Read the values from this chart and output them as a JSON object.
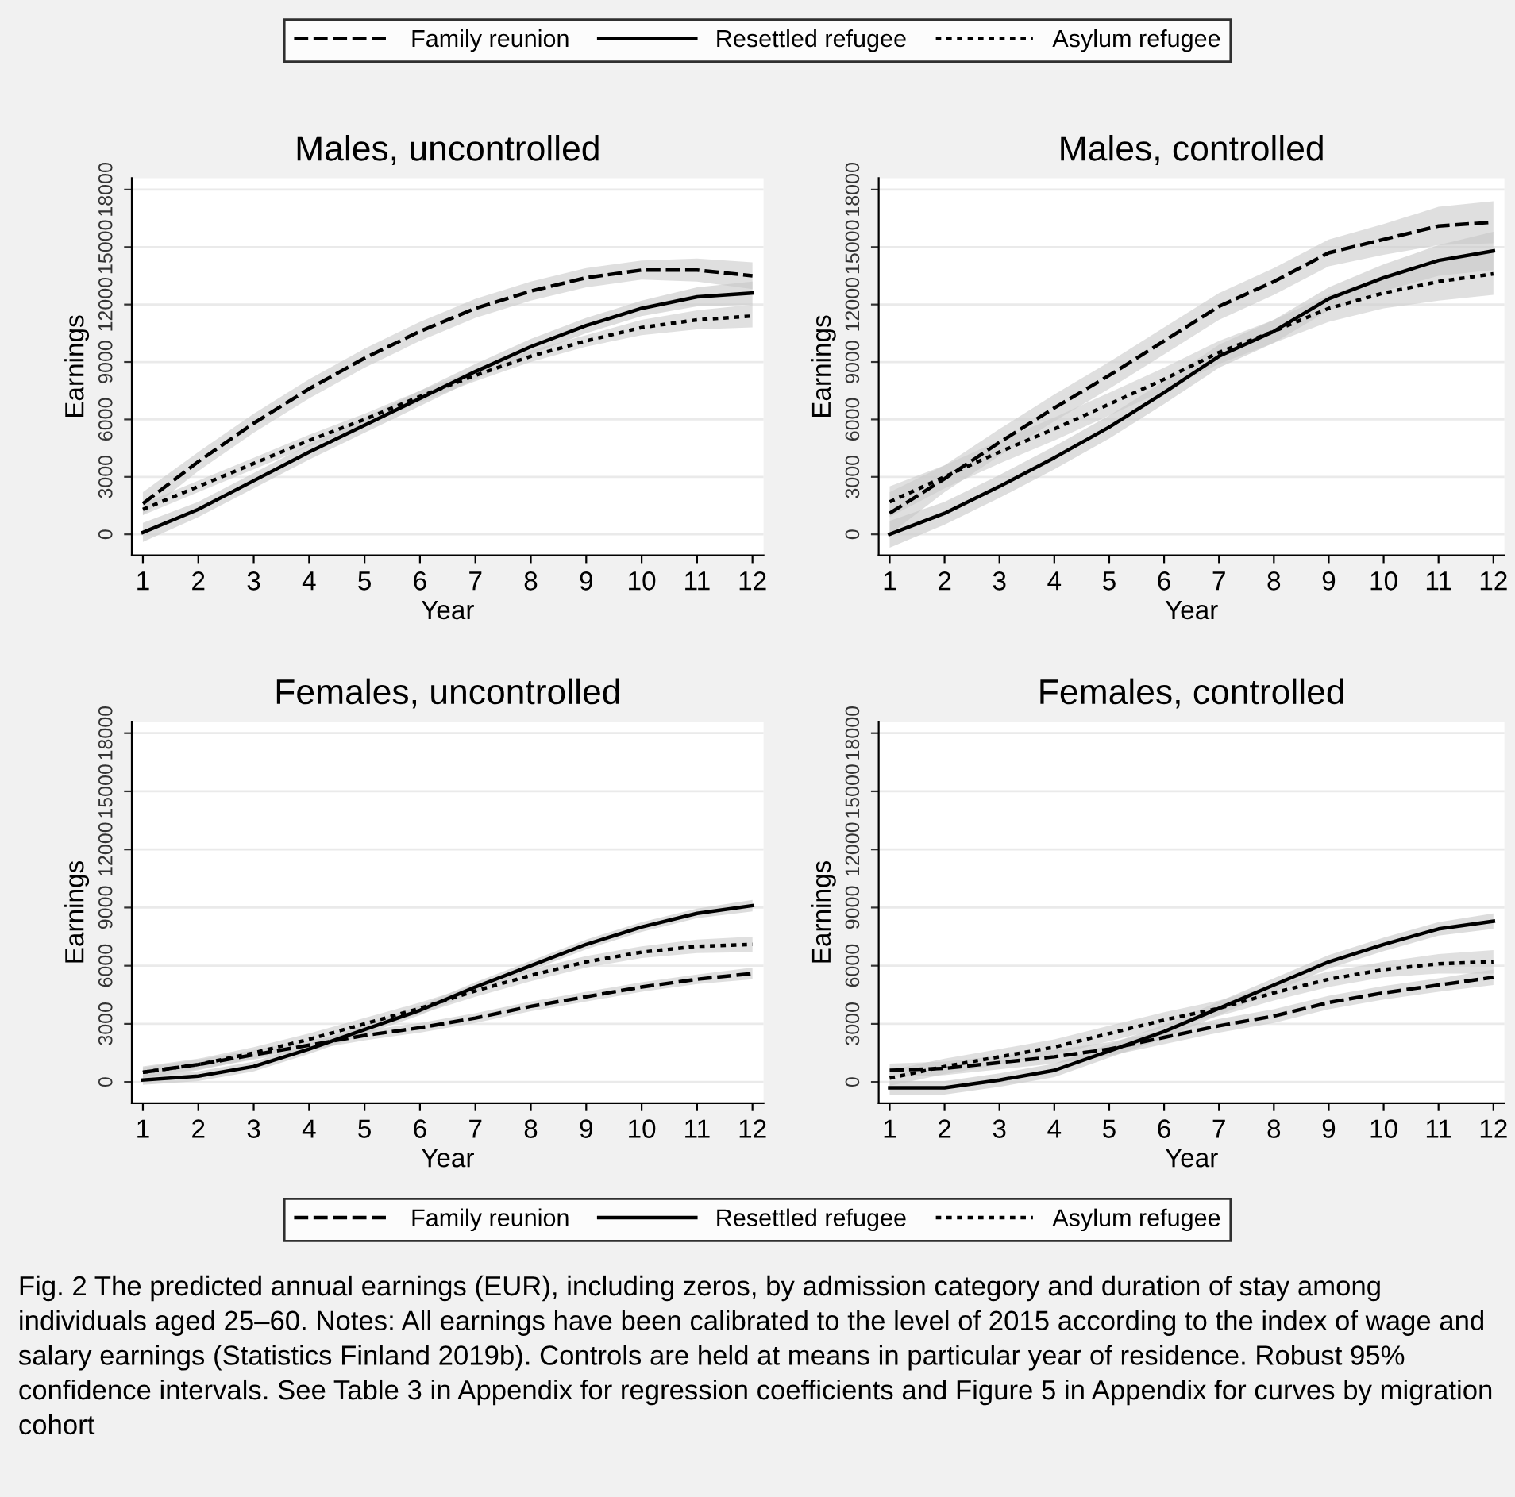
{
  "chart_data": [
    {
      "type": "line",
      "title": "Males, uncontrolled",
      "xlabel": "Year",
      "ylabel": "Earnings",
      "x": [
        1,
        2,
        3,
        4,
        5,
        6,
        7,
        8,
        9,
        10,
        11,
        12
      ],
      "xlim": [
        0.8,
        12.2
      ],
      "xticks": [
        1,
        2,
        3,
        4,
        5,
        6,
        7,
        8,
        9,
        10,
        11,
        12
      ],
      "ylim": [
        -1100,
        18600
      ],
      "yticks": [
        0,
        3000,
        6000,
        9000,
        12000,
        15000,
        18000
      ],
      "grid": "y",
      "legend": "top",
      "marker": "none",
      "series": [
        {
          "name": "Family reunion",
          "color": "#000000",
          "line_style": "dashed",
          "values": [
            1600,
            3800,
            5800,
            7600,
            9200,
            10600,
            11800,
            12700,
            13400,
            13800,
            13800,
            13500
          ],
          "lower": [
            1000,
            3300,
            5300,
            7100,
            8700,
            10100,
            11300,
            12200,
            12900,
            13300,
            13200,
            12800
          ],
          "upper": [
            2200,
            4300,
            6300,
            8100,
            9700,
            11100,
            12300,
            13200,
            13900,
            14300,
            14400,
            14200
          ]
        },
        {
          "name": "Resettled refugee",
          "color": "#000000",
          "line_style": "solid",
          "values": [
            100,
            1300,
            2800,
            4300,
            5700,
            7100,
            8500,
            9800,
            10900,
            11800,
            12400,
            12600
          ],
          "lower": [
            -400,
            900,
            2400,
            3900,
            5300,
            6700,
            8100,
            9400,
            10500,
            11400,
            11900,
            12000
          ],
          "upper": [
            600,
            1700,
            3200,
            4700,
            6100,
            7500,
            8900,
            10200,
            11300,
            12200,
            12900,
            13200
          ]
        },
        {
          "name": "Asylum refugee",
          "color": "#000000",
          "line_style": "dotted",
          "values": [
            1300,
            2500,
            3700,
            4900,
            6000,
            7200,
            8300,
            9300,
            10100,
            10800,
            11200,
            11400
          ],
          "lower": [
            1000,
            2200,
            3400,
            4600,
            5700,
            6900,
            8000,
            9000,
            9800,
            10400,
            10700,
            10800
          ],
          "upper": [
            1600,
            2800,
            4000,
            5200,
            6300,
            7500,
            8600,
            9600,
            10400,
            11200,
            11700,
            12000
          ]
        }
      ]
    },
    {
      "type": "line",
      "title": "Males, controlled",
      "xlabel": "Year",
      "ylabel": "Earnings",
      "x": [
        1,
        2,
        3,
        4,
        5,
        6,
        7,
        8,
        9,
        10,
        11,
        12
      ],
      "xlim": [
        0.8,
        12.2
      ],
      "xticks": [
        1,
        2,
        3,
        4,
        5,
        6,
        7,
        8,
        9,
        10,
        11,
        12
      ],
      "ylim": [
        -1100,
        18600
      ],
      "yticks": [
        0,
        3000,
        6000,
        9000,
        12000,
        15000,
        18000
      ],
      "grid": "y",
      "marker": "none",
      "series": [
        {
          "color": "#000000",
          "line_style": "dashed",
          "values": [
            1100,
            2900,
            4800,
            6600,
            8300,
            10100,
            11900,
            13200,
            14700,
            15400,
            16100,
            16300
          ],
          "lower": [
            0,
            2200,
            4100,
            5900,
            7600,
            9400,
            11200,
            12500,
            14000,
            14600,
            15100,
            15200
          ],
          "upper": [
            2200,
            3600,
            5500,
            7300,
            9000,
            10800,
            12600,
            13900,
            15400,
            16200,
            17100,
            17400
          ]
        },
        {
          "color": "#000000",
          "line_style": "solid",
          "values": [
            0,
            1100,
            2500,
            4000,
            5600,
            7400,
            9300,
            10600,
            12300,
            13400,
            14300,
            14800
          ],
          "lower": [
            -700,
            500,
            1900,
            3400,
            5000,
            6800,
            8700,
            10000,
            11700,
            12700,
            13500,
            13800
          ],
          "upper": [
            700,
            1700,
            3100,
            4600,
            6200,
            8000,
            9900,
            11200,
            12900,
            14100,
            15100,
            15800
          ]
        },
        {
          "color": "#000000",
          "line_style": "dotted",
          "values": [
            1700,
            3000,
            4300,
            5500,
            6800,
            8100,
            9500,
            10600,
            11800,
            12600,
            13200,
            13600
          ],
          "lower": [
            900,
            2400,
            3700,
            4900,
            6200,
            7500,
            8900,
            10000,
            11100,
            11800,
            12200,
            12500
          ],
          "upper": [
            2500,
            3600,
            4900,
            6100,
            7400,
            8700,
            10100,
            11200,
            12500,
            13400,
            14200,
            14700
          ]
        }
      ]
    },
    {
      "type": "line",
      "title": "Females, uncontrolled",
      "xlabel": "Year",
      "ylabel": "Earnings",
      "x": [
        1,
        2,
        3,
        4,
        5,
        6,
        7,
        8,
        9,
        10,
        11,
        12
      ],
      "xlim": [
        0.8,
        12.2
      ],
      "xticks": [
        1,
        2,
        3,
        4,
        5,
        6,
        7,
        8,
        9,
        10,
        11,
        12
      ],
      "ylim": [
        -1100,
        18600
      ],
      "yticks": [
        0,
        3000,
        6000,
        9000,
        12000,
        15000,
        18000
      ],
      "grid": "y",
      "marker": "none",
      "series": [
        {
          "color": "#000000",
          "line_style": "dashed",
          "values": [
            500,
            900,
            1400,
            1900,
            2400,
            2800,
            3300,
            3900,
            4400,
            4900,
            5300,
            5600
          ],
          "lower": [
            250,
            650,
            1150,
            1650,
            2150,
            2550,
            3050,
            3650,
            4150,
            4650,
            5050,
            5300
          ],
          "upper": [
            750,
            1150,
            1650,
            2150,
            2650,
            3050,
            3550,
            4150,
            4650,
            5150,
            5550,
            5900
          ]
        },
        {
          "color": "#000000",
          "line_style": "solid",
          "values": [
            100,
            300,
            800,
            1700,
            2700,
            3700,
            4900,
            6000,
            7100,
            8000,
            8700,
            9100
          ],
          "lower": [
            -150,
            50,
            550,
            1450,
            2450,
            3450,
            4650,
            5750,
            6850,
            7750,
            8450,
            8800
          ],
          "upper": [
            350,
            550,
            1050,
            1950,
            2950,
            3950,
            5150,
            6250,
            7350,
            8250,
            8950,
            9400
          ]
        },
        {
          "color": "#000000",
          "line_style": "dotted",
          "values": [
            500,
            900,
            1500,
            2200,
            3000,
            3800,
            4700,
            5500,
            6200,
            6700,
            7000,
            7100
          ],
          "lower": [
            200,
            600,
            1200,
            1900,
            2700,
            3500,
            4400,
            5200,
            5900,
            6400,
            6650,
            6700
          ],
          "upper": [
            800,
            1200,
            1800,
            2500,
            3300,
            4100,
            5000,
            5800,
            6500,
            7000,
            7350,
            7500
          ]
        }
      ]
    },
    {
      "type": "line",
      "title": "Females, controlled",
      "xlabel": "Year",
      "ylabel": "Earnings",
      "x": [
        1,
        2,
        3,
        4,
        5,
        6,
        7,
        8,
        9,
        10,
        11,
        12
      ],
      "xlim": [
        0.8,
        12.2
      ],
      "xticks": [
        1,
        2,
        3,
        4,
        5,
        6,
        7,
        8,
        9,
        10,
        11,
        12
      ],
      "ylim": [
        -1100,
        18600
      ],
      "yticks": [
        0,
        3000,
        6000,
        9000,
        12000,
        15000,
        18000
      ],
      "grid": "y",
      "legend": "bottom",
      "marker": "none",
      "annotations": [
        "Fig. 2 The predicted annual earnings (EUR), including zeros, by admission category and duration of stay among individuals aged 25–60. Notes: All earnings have been calibrated to the level of 2015 according to the index of wage and salary earnings (Statistics Finland 2019b). Controls are held at means in particular year of residence. Robust 95% confidence intervals. See Table 3 in Appendix for regression coefficients and Figure 5 in Appendix for curves by migration cohort"
      ],
      "series": [
        {
          "name": "Family reunion",
          "color": "#000000",
          "line_style": "dashed",
          "values": [
            600,
            700,
            1000,
            1300,
            1700,
            2300,
            2900,
            3400,
            4100,
            4600,
            5000,
            5400
          ],
          "lower": [
            250,
            350,
            650,
            950,
            1350,
            1950,
            2550,
            3050,
            3750,
            4250,
            4650,
            5000
          ],
          "upper": [
            950,
            1050,
            1350,
            1650,
            2050,
            2650,
            3250,
            3750,
            4450,
            4950,
            5350,
            5800
          ]
        },
        {
          "name": "Resettled refugee",
          "color": "#000000",
          "line_style": "solid",
          "values": [
            -300,
            -300,
            100,
            600,
            1600,
            2600,
            3800,
            5000,
            6200,
            7100,
            7900,
            8300
          ],
          "lower": [
            -650,
            -650,
            -250,
            250,
            1250,
            2250,
            3450,
            4650,
            5850,
            6750,
            7550,
            7900
          ],
          "upper": [
            50,
            50,
            450,
            950,
            1950,
            2950,
            4150,
            5350,
            6550,
            7450,
            8250,
            8700
          ]
        },
        {
          "name": "Asylum refugee",
          "color": "#000000",
          "line_style": "dotted",
          "values": [
            200,
            800,
            1300,
            1800,
            2500,
            3200,
            3800,
            4600,
            5300,
            5800,
            6100,
            6200
          ],
          "lower": [
            -200,
            400,
            900,
            1400,
            2100,
            2800,
            3400,
            4200,
            4900,
            5400,
            5600,
            5600
          ],
          "upper": [
            600,
            1200,
            1700,
            2200,
            2900,
            3600,
            4200,
            5000,
            5700,
            6200,
            6600,
            6800
          ]
        }
      ]
    }
  ]
}
